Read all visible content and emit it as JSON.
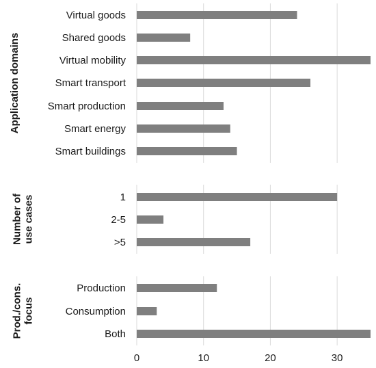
{
  "chart_data": {
    "type": "bar",
    "orientation": "horizontal",
    "bar_color": "#7f7f7f",
    "grid_color": "#d9d9d9",
    "xlim": [
      0,
      35
    ],
    "xticks": [
      "0",
      "10",
      "20",
      "30"
    ],
    "xtick_values": [
      0,
      10,
      20,
      30
    ],
    "grid": true,
    "panels": [
      {
        "ylabel": [
          "Application domains"
        ],
        "categories": [
          "Virtual goods",
          "Shared goods",
          "Virtual mobility",
          "Smart transport",
          "Smart production",
          "Smart energy",
          "Smart buildings"
        ],
        "values": [
          24,
          8,
          35,
          26,
          13,
          14,
          15
        ]
      },
      {
        "ylabel": [
          "Number of",
          "use cases"
        ],
        "categories": [
          "1",
          "2-5",
          ">5"
        ],
        "values": [
          30,
          4,
          17
        ]
      },
      {
        "ylabel": [
          "Prod./cons.",
          "focus"
        ],
        "categories": [
          "Production",
          "Consumption",
          "Both"
        ],
        "values": [
          12,
          3,
          35
        ]
      }
    ]
  }
}
